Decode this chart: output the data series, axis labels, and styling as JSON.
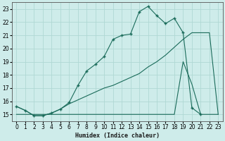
{
  "xlabel": "Humidex (Indice chaleur)",
  "background_color": "#ceecea",
  "grid_color": "#afd8d4",
  "line_color": "#1a6b5a",
  "xlim": [
    -0.5,
    23.5
  ],
  "ylim": [
    14.5,
    23.5
  ],
  "yticks": [
    15,
    16,
    17,
    18,
    19,
    20,
    21,
    22,
    23
  ],
  "xticks": [
    0,
    1,
    2,
    3,
    4,
    5,
    6,
    7,
    8,
    9,
    10,
    11,
    12,
    13,
    14,
    15,
    16,
    17,
    18,
    19,
    20,
    21,
    22,
    23
  ],
  "series": [
    {
      "x": [
        0,
        1,
        2,
        3,
        4,
        5,
        6,
        7,
        8,
        9,
        10,
        11,
        12,
        13,
        14,
        15,
        16,
        17,
        18,
        19,
        20,
        21,
        22,
        23
      ],
      "y": [
        15.6,
        15.3,
        14.9,
        14.9,
        15.1,
        15.4,
        15.8,
        16.1,
        16.4,
        16.7,
        17.0,
        17.2,
        17.5,
        17.8,
        18.1,
        18.6,
        19.0,
        19.5,
        20.1,
        20.7,
        21.2,
        21.2,
        21.2,
        15.0
      ],
      "marker": null
    },
    {
      "x": [
        0,
        1,
        2,
        3,
        4,
        5,
        6,
        7,
        8,
        9,
        10,
        11,
        12,
        13,
        14,
        15,
        16,
        17,
        18,
        19,
        20,
        21,
        22,
        23
      ],
      "y": [
        15.0,
        15.0,
        15.0,
        15.0,
        15.0,
        15.0,
        15.0,
        15.0,
        15.0,
        15.0,
        15.0,
        15.0,
        15.0,
        15.0,
        15.0,
        15.0,
        15.0,
        15.0,
        15.0,
        19.0,
        17.3,
        15.0,
        15.0,
        15.0
      ],
      "marker": null
    },
    {
      "x": [
        0,
        1,
        2,
        3,
        4,
        5,
        6,
        7,
        8,
        9,
        10,
        11,
        12,
        13,
        14,
        15,
        16,
        17,
        18,
        19,
        20,
        21
      ],
      "y": [
        15.6,
        15.3,
        14.9,
        14.9,
        15.1,
        15.4,
        15.9,
        17.2,
        18.3,
        18.8,
        19.4,
        20.7,
        21.0,
        21.1,
        22.8,
        23.2,
        22.5,
        21.9,
        22.3,
        21.2,
        15.5,
        15.0
      ],
      "marker": "+"
    }
  ]
}
